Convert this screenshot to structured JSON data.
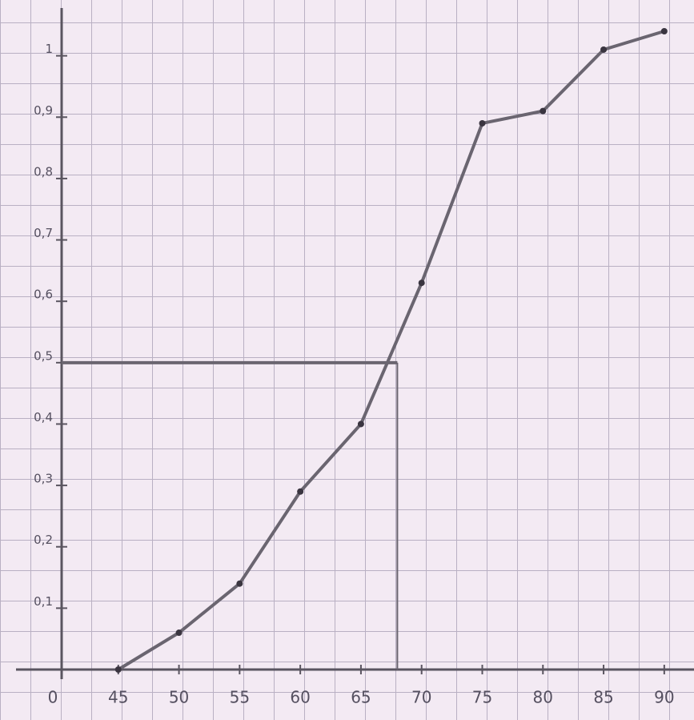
{
  "chart_data": {
    "type": "line",
    "origin_label": "0",
    "x": [
      45,
      50,
      55,
      60,
      65,
      70,
      75,
      80,
      85,
      90
    ],
    "series": [
      {
        "color": "#6a6570",
        "values": [
          0,
          0.06,
          0.14,
          0.29,
          0.4,
          0.63,
          0.89,
          0.91,
          1.01,
          1.04
        ]
      }
    ],
    "guide_lines": {
      "x": 68,
      "y": 0.5
    },
    "xlim": [
      40,
      91
    ],
    "xticks": [
      45,
      50,
      55,
      60,
      65,
      70,
      75,
      80,
      85,
      90
    ],
    "ylim": [
      0,
      1.07
    ],
    "yticks": [
      {
        "value": 0.1,
        "label": "0,1"
      },
      {
        "value": 0.2,
        "label": "0,2"
      },
      {
        "value": 0.3,
        "label": "0,3"
      },
      {
        "value": 0.4,
        "label": "0,4"
      },
      {
        "value": 0.5,
        "label": "0,5"
      },
      {
        "value": 0.6,
        "label": "0,6"
      },
      {
        "value": 0.7,
        "label": "0,7"
      },
      {
        "value": 0.8,
        "label": "0,8"
      },
      {
        "value": 0.9,
        "label": "0,9"
      },
      1
    ]
  }
}
